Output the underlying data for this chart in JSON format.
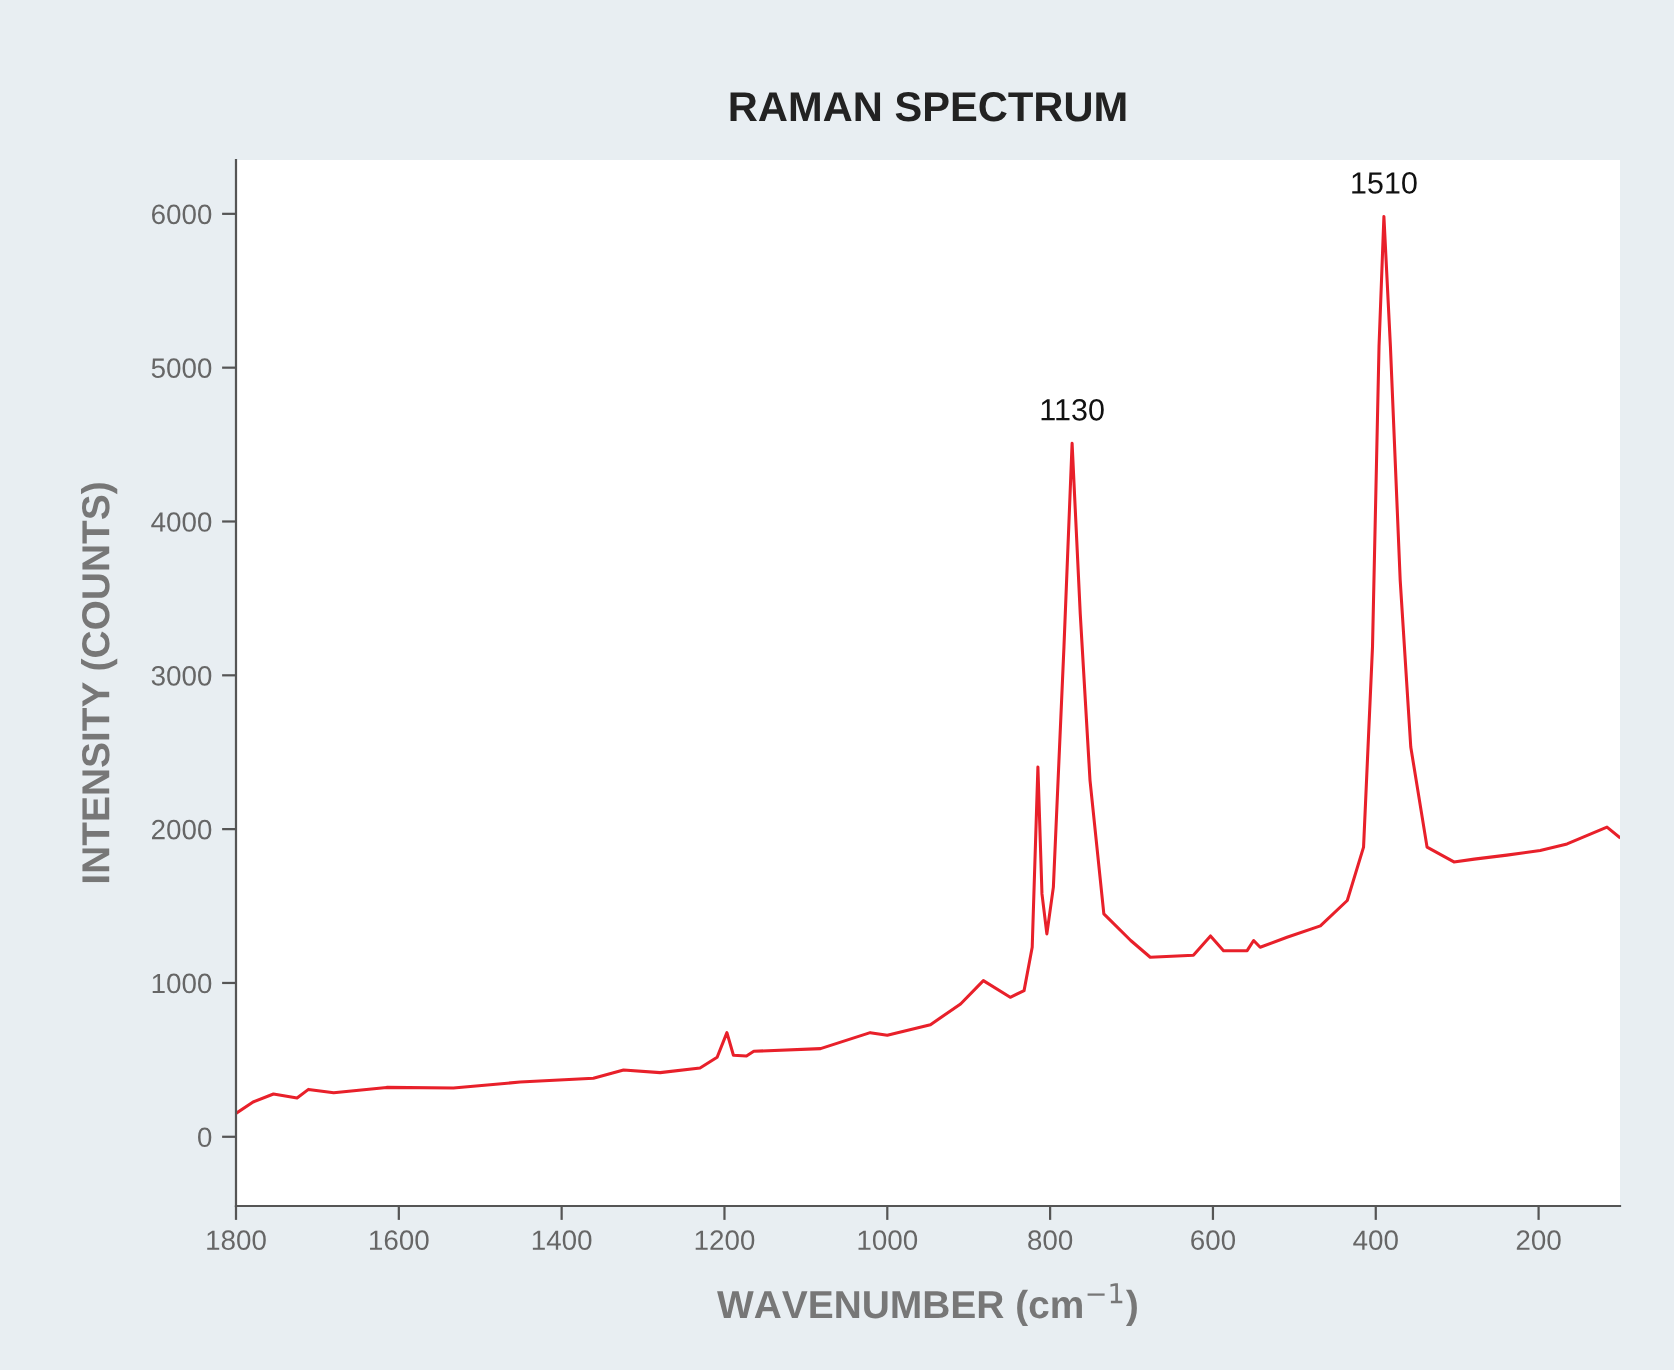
{
  "chart_data": {
    "type": "line",
    "title": "RAMAN SPECTRUM",
    "xlabel": "WAVENUMBER (cm$^{−1}$)",
    "ylabel": "INTENSITY (COUNTS)",
    "xlim": [
      1800,
      100
    ],
    "xticks": [
      1800,
      1600,
      1400,
      1200,
      1000,
      800,
      600,
      400,
      200
    ],
    "ylim": [
      -450,
      6350
    ],
    "yticks": [
      0,
      1000,
      2000,
      3000,
      4000,
      5000,
      6000
    ],
    "grid": false,
    "marker": "none",
    "line_style": "solid",
    "series": [
      {
        "color": "#e8202a",
        "x": [
          1799,
          1779,
          1754,
          1725,
          1711,
          1680,
          1615,
          1533,
          1451,
          1361,
          1324,
          1279,
          1230,
          1209,
          1197,
          1189,
          1173,
          1164,
          1082,
          1021,
          1000,
          947,
          910,
          882,
          849,
          832,
          822,
          815,
          810,
          804,
          796,
          783,
          773,
          763,
          751,
          734,
          701,
          677,
          624,
          603,
          587,
          558,
          550,
          542,
          509,
          468,
          435,
          415,
          404,
          396,
          390,
          382,
          370,
          357,
          337,
          304,
          279,
          239,
          198,
          165,
          116,
          101
        ],
        "values": [
          156,
          226,
          278,
          252,
          308,
          286,
          321,
          317,
          356,
          381,
          434,
          417,
          447,
          517,
          677,
          530,
          525,
          556,
          573,
          677,
          660,
          729,
          863,
          1015,
          907,
          950,
          1232,
          2404,
          1579,
          1319,
          1623,
          3185,
          4508,
          3401,
          2317,
          1449,
          1276,
          1167,
          1180,
          1306,
          1210,
          1210,
          1276,
          1232,
          1297,
          1371,
          1536,
          1883,
          3185,
          5138,
          5983,
          5138,
          3619,
          2534,
          1883,
          1787,
          1805,
          1831,
          1861,
          1904,
          2013,
          1948
        ]
      }
    ],
    "annotations": [
      {
        "text": "1130",
        "x": 773,
        "y": 4508
      },
      {
        "text": "1510",
        "x": 390,
        "y": 5983
      }
    ]
  }
}
